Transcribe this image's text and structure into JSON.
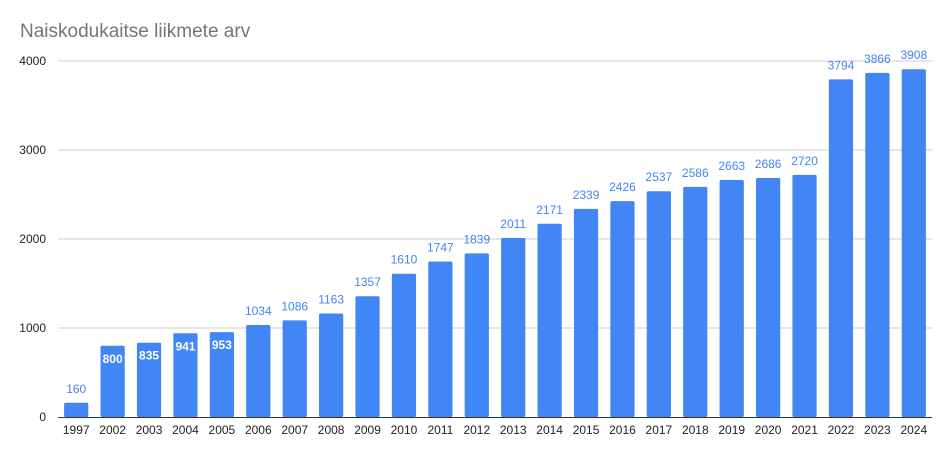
{
  "chart_data": {
    "type": "bar",
    "title": "Naiskodukaitse liikmete arv",
    "xlabel": "",
    "ylabel": "",
    "categories": [
      "1997",
      "2002",
      "2003",
      "2004",
      "2005",
      "2006",
      "2007",
      "2008",
      "2009",
      "2010",
      "2011",
      "2012",
      "2013",
      "2014",
      "2015",
      "2016",
      "2017",
      "2018",
      "2019",
      "2020",
      "2021",
      "2022",
      "2023",
      "2024"
    ],
    "values": [
      160,
      800,
      835,
      941,
      953,
      1034,
      1086,
      1163,
      1357,
      1610,
      1747,
      1839,
      2011,
      2171,
      2339,
      2426,
      2537,
      2586,
      2663,
      2686,
      2720,
      3794,
      3866,
      3908
    ],
    "ylim": [
      0,
      4000
    ],
    "yticks": [
      0,
      1000,
      2000,
      3000,
      4000
    ],
    "grid": true,
    "legend": "none",
    "colors": {
      "bar": "#4285f4",
      "label_outside": "#4285f4",
      "label_inside": "#ffffff",
      "title": "#757575",
      "grid": "#cccccc"
    }
  }
}
